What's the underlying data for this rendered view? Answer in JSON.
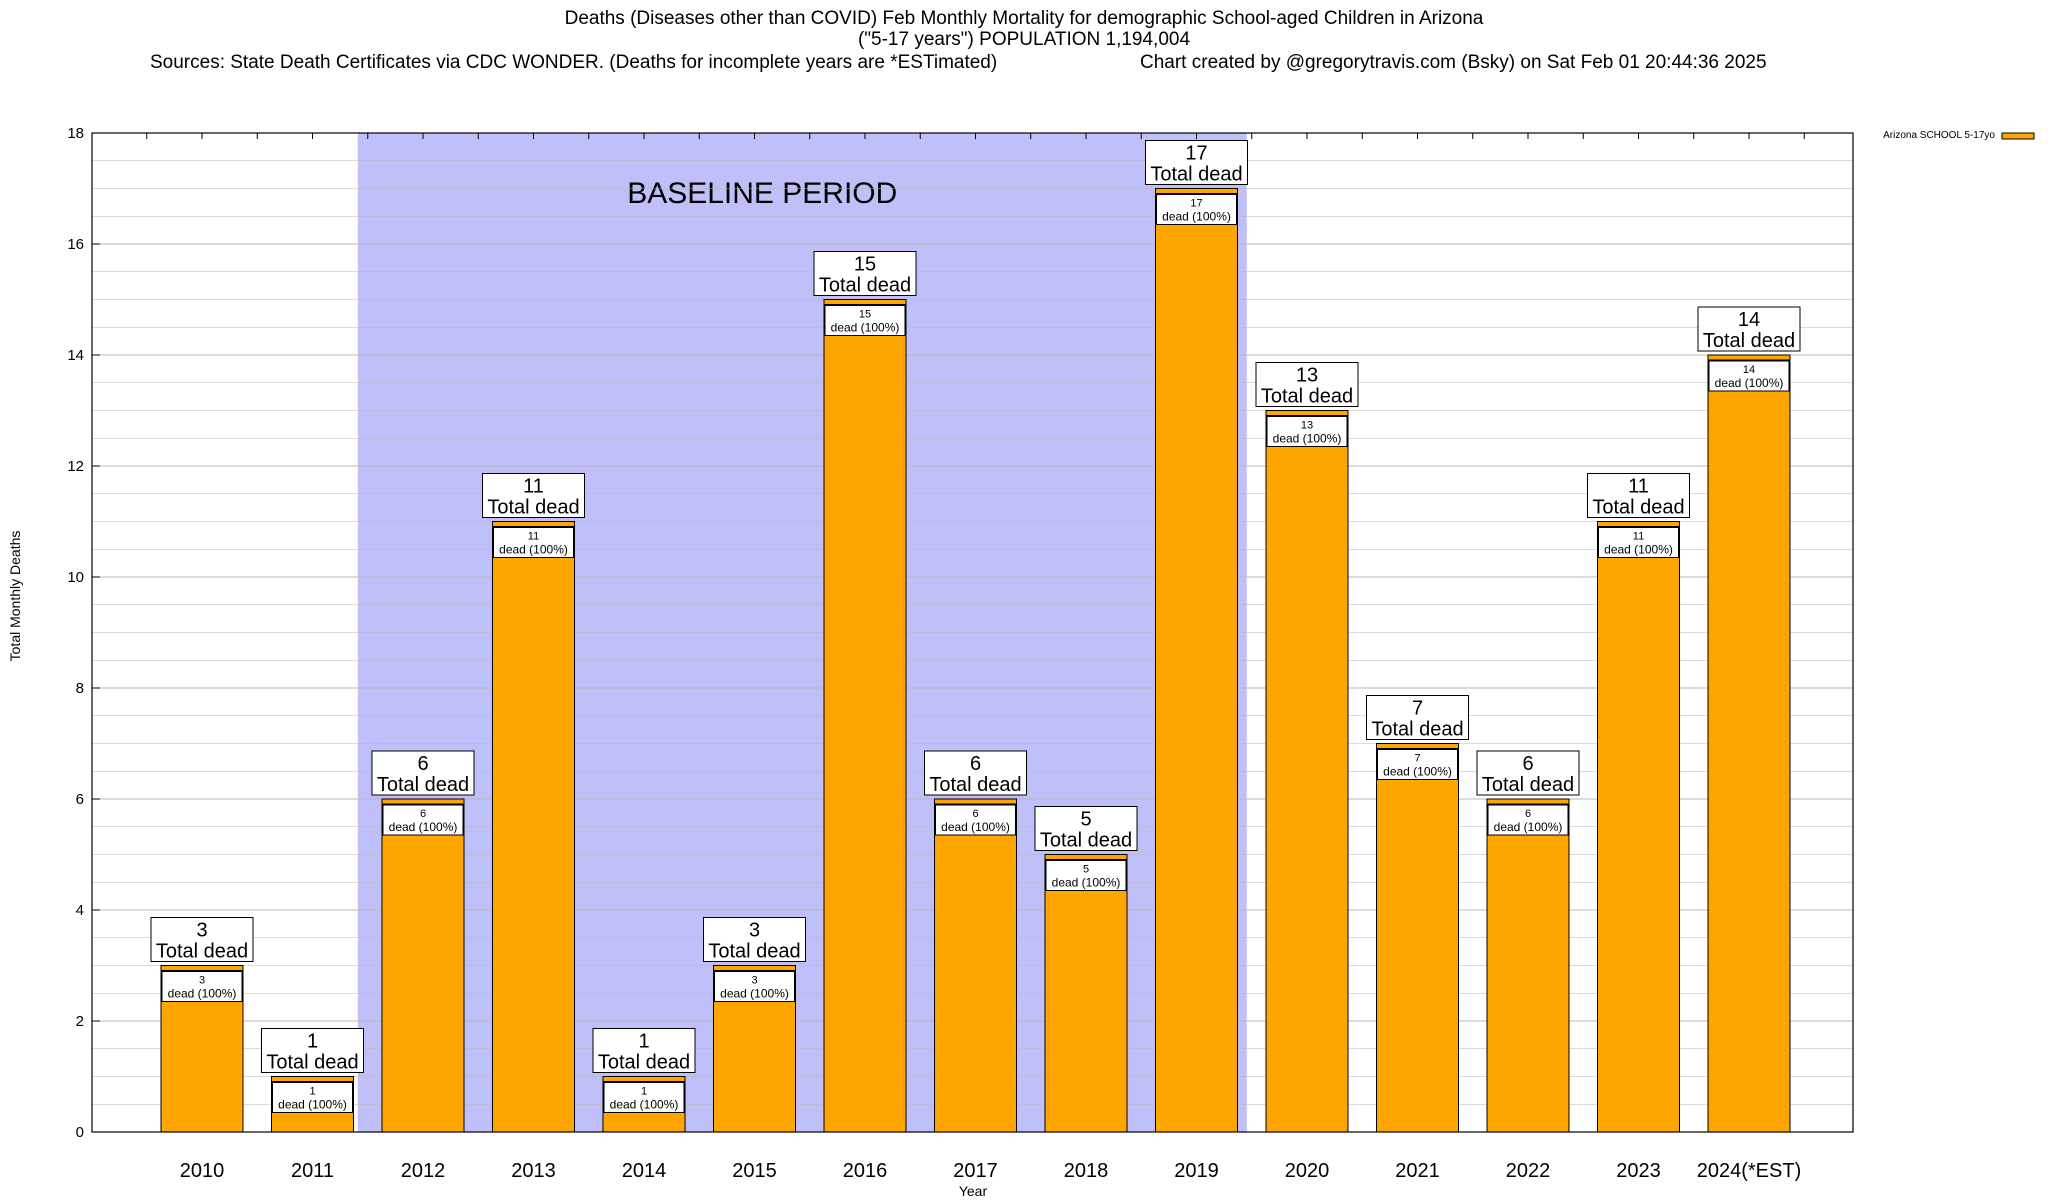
{
  "header": {
    "title_line1": "Deaths (Diseases other than COVID) Feb Monthly Mortality for demographic School-aged Children in Arizona",
    "title_line2": "(\"5-17 years\") POPULATION 1,194,004",
    "sources": "Sources: State Death Certificates via CDC WONDER. (Deaths for incomplete years are *ESTimated)",
    "credit": "Chart created by @gregorytravis.com (Bsky) on Sat Feb 01 20:44:36 2025"
  },
  "chart_data": {
    "type": "bar",
    "title": "Deaths (Diseases other than COVID) Feb Monthly Mortality for demographic School-aged Children in Arizona",
    "xlabel": "Year",
    "ylabel": "Total Monthly Deaths",
    "ylim": [
      0,
      18
    ],
    "y_ticks": [
      0,
      2,
      4,
      6,
      8,
      10,
      12,
      14,
      16,
      18
    ],
    "grid": true,
    "categories": [
      "2010",
      "2011",
      "2012",
      "2013",
      "2014",
      "2015",
      "2016",
      "2017",
      "2018",
      "2019",
      "2020",
      "2021",
      "2022",
      "2023",
      "2024(*EST)"
    ],
    "series": [
      {
        "name": "Arizona SCHOOL 5-17yo",
        "color": "#FFA500",
        "values": [
          3,
          1,
          6,
          11,
          1,
          3,
          15,
          6,
          5,
          17,
          13,
          7,
          6,
          11,
          14
        ]
      }
    ],
    "bar_label_top_suffix": "Total dead",
    "bar_label_inner_suffix": "dead (100%)",
    "baseline_region": {
      "label": "BASELINE PERIOD",
      "from": "2012",
      "to": "2019",
      "color": "#BFBFFA"
    },
    "legend_position": "top-right"
  }
}
